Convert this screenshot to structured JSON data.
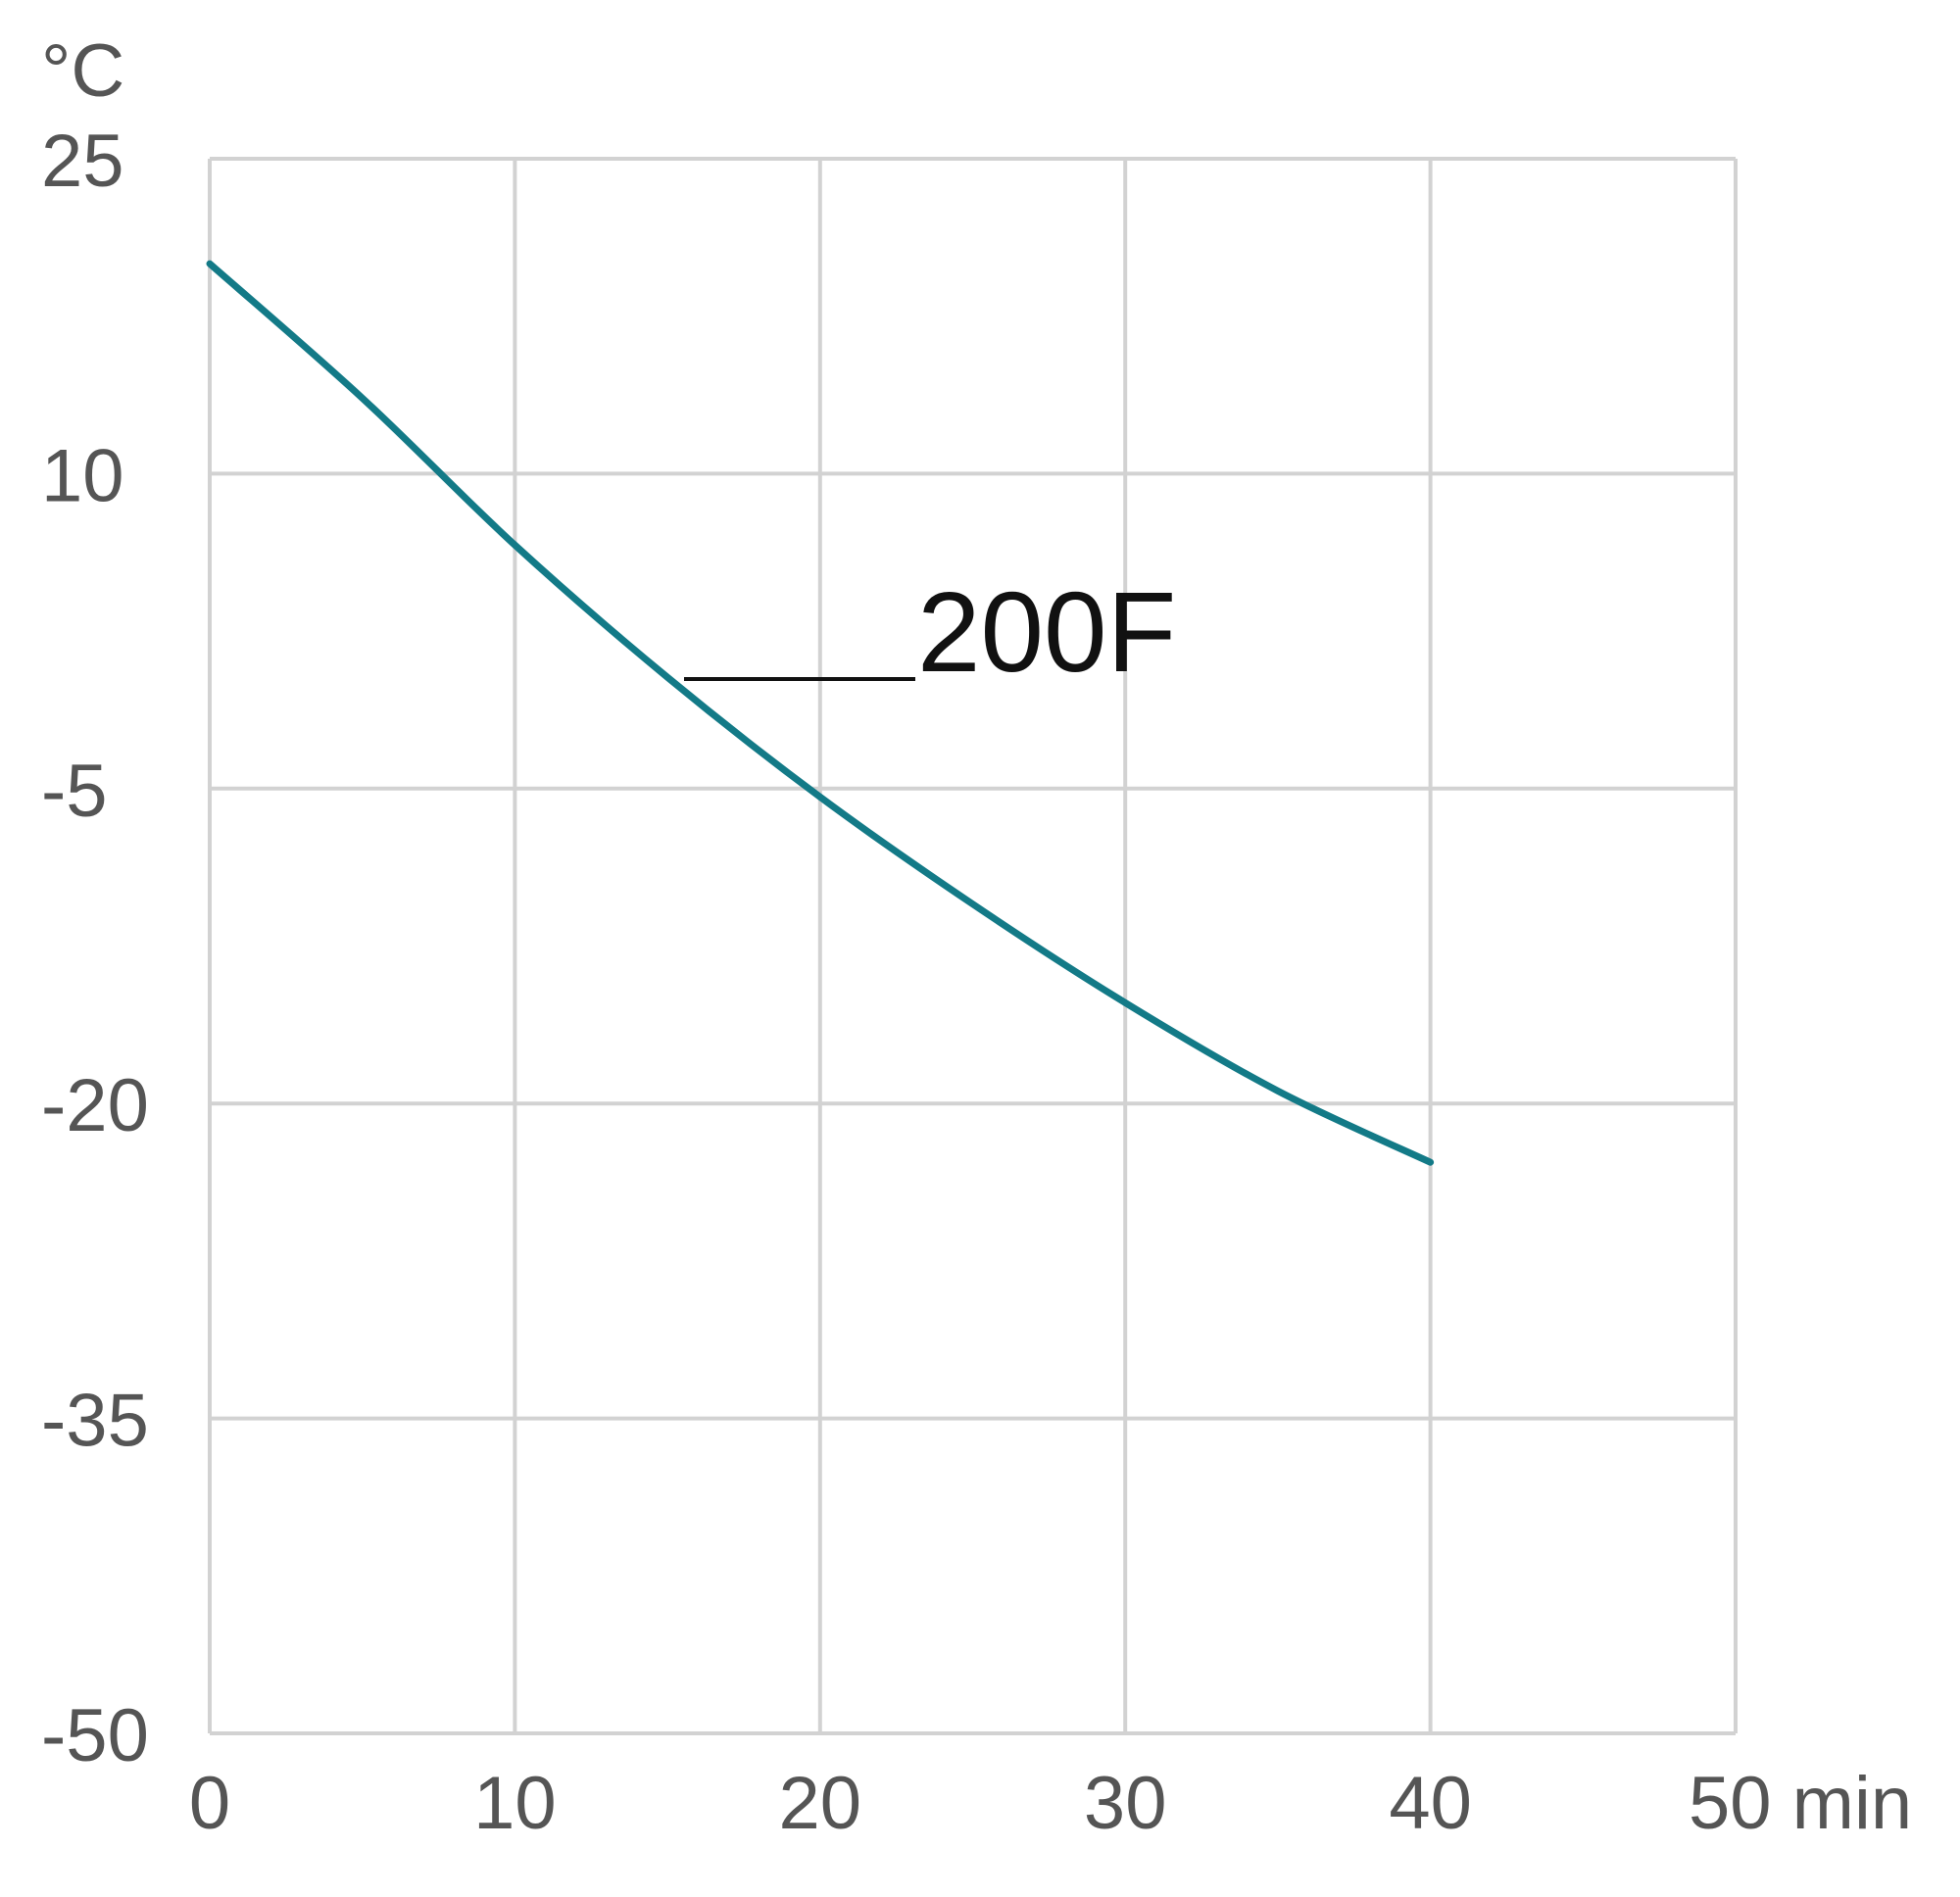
{
  "chart_data": {
    "type": "line",
    "xlabel": "min",
    "ylabel": "°C",
    "xlim": [
      0,
      50
    ],
    "ylim": [
      -50,
      25
    ],
    "x_ticks": [
      0,
      10,
      20,
      30,
      40,
      50
    ],
    "x_tick_labels": [
      "0",
      "10",
      "20",
      "30",
      "40",
      "50 min"
    ],
    "y_ticks": [
      25,
      10,
      -5,
      -20,
      -35,
      -50
    ],
    "y_tick_labels": [
      "25",
      "10",
      "-5",
      "-20",
      "-35",
      "-50"
    ],
    "grid": true,
    "series": [
      {
        "name": "200F",
        "color": "#137a87",
        "x": [
          0,
          5,
          10,
          15,
          20,
          25,
          30,
          35,
          40
        ],
        "y": [
          20,
          13.6,
          6.6,
          0.3,
          -5.4,
          -10.5,
          -15.2,
          -19.4,
          -22.8
        ]
      }
    ]
  }
}
